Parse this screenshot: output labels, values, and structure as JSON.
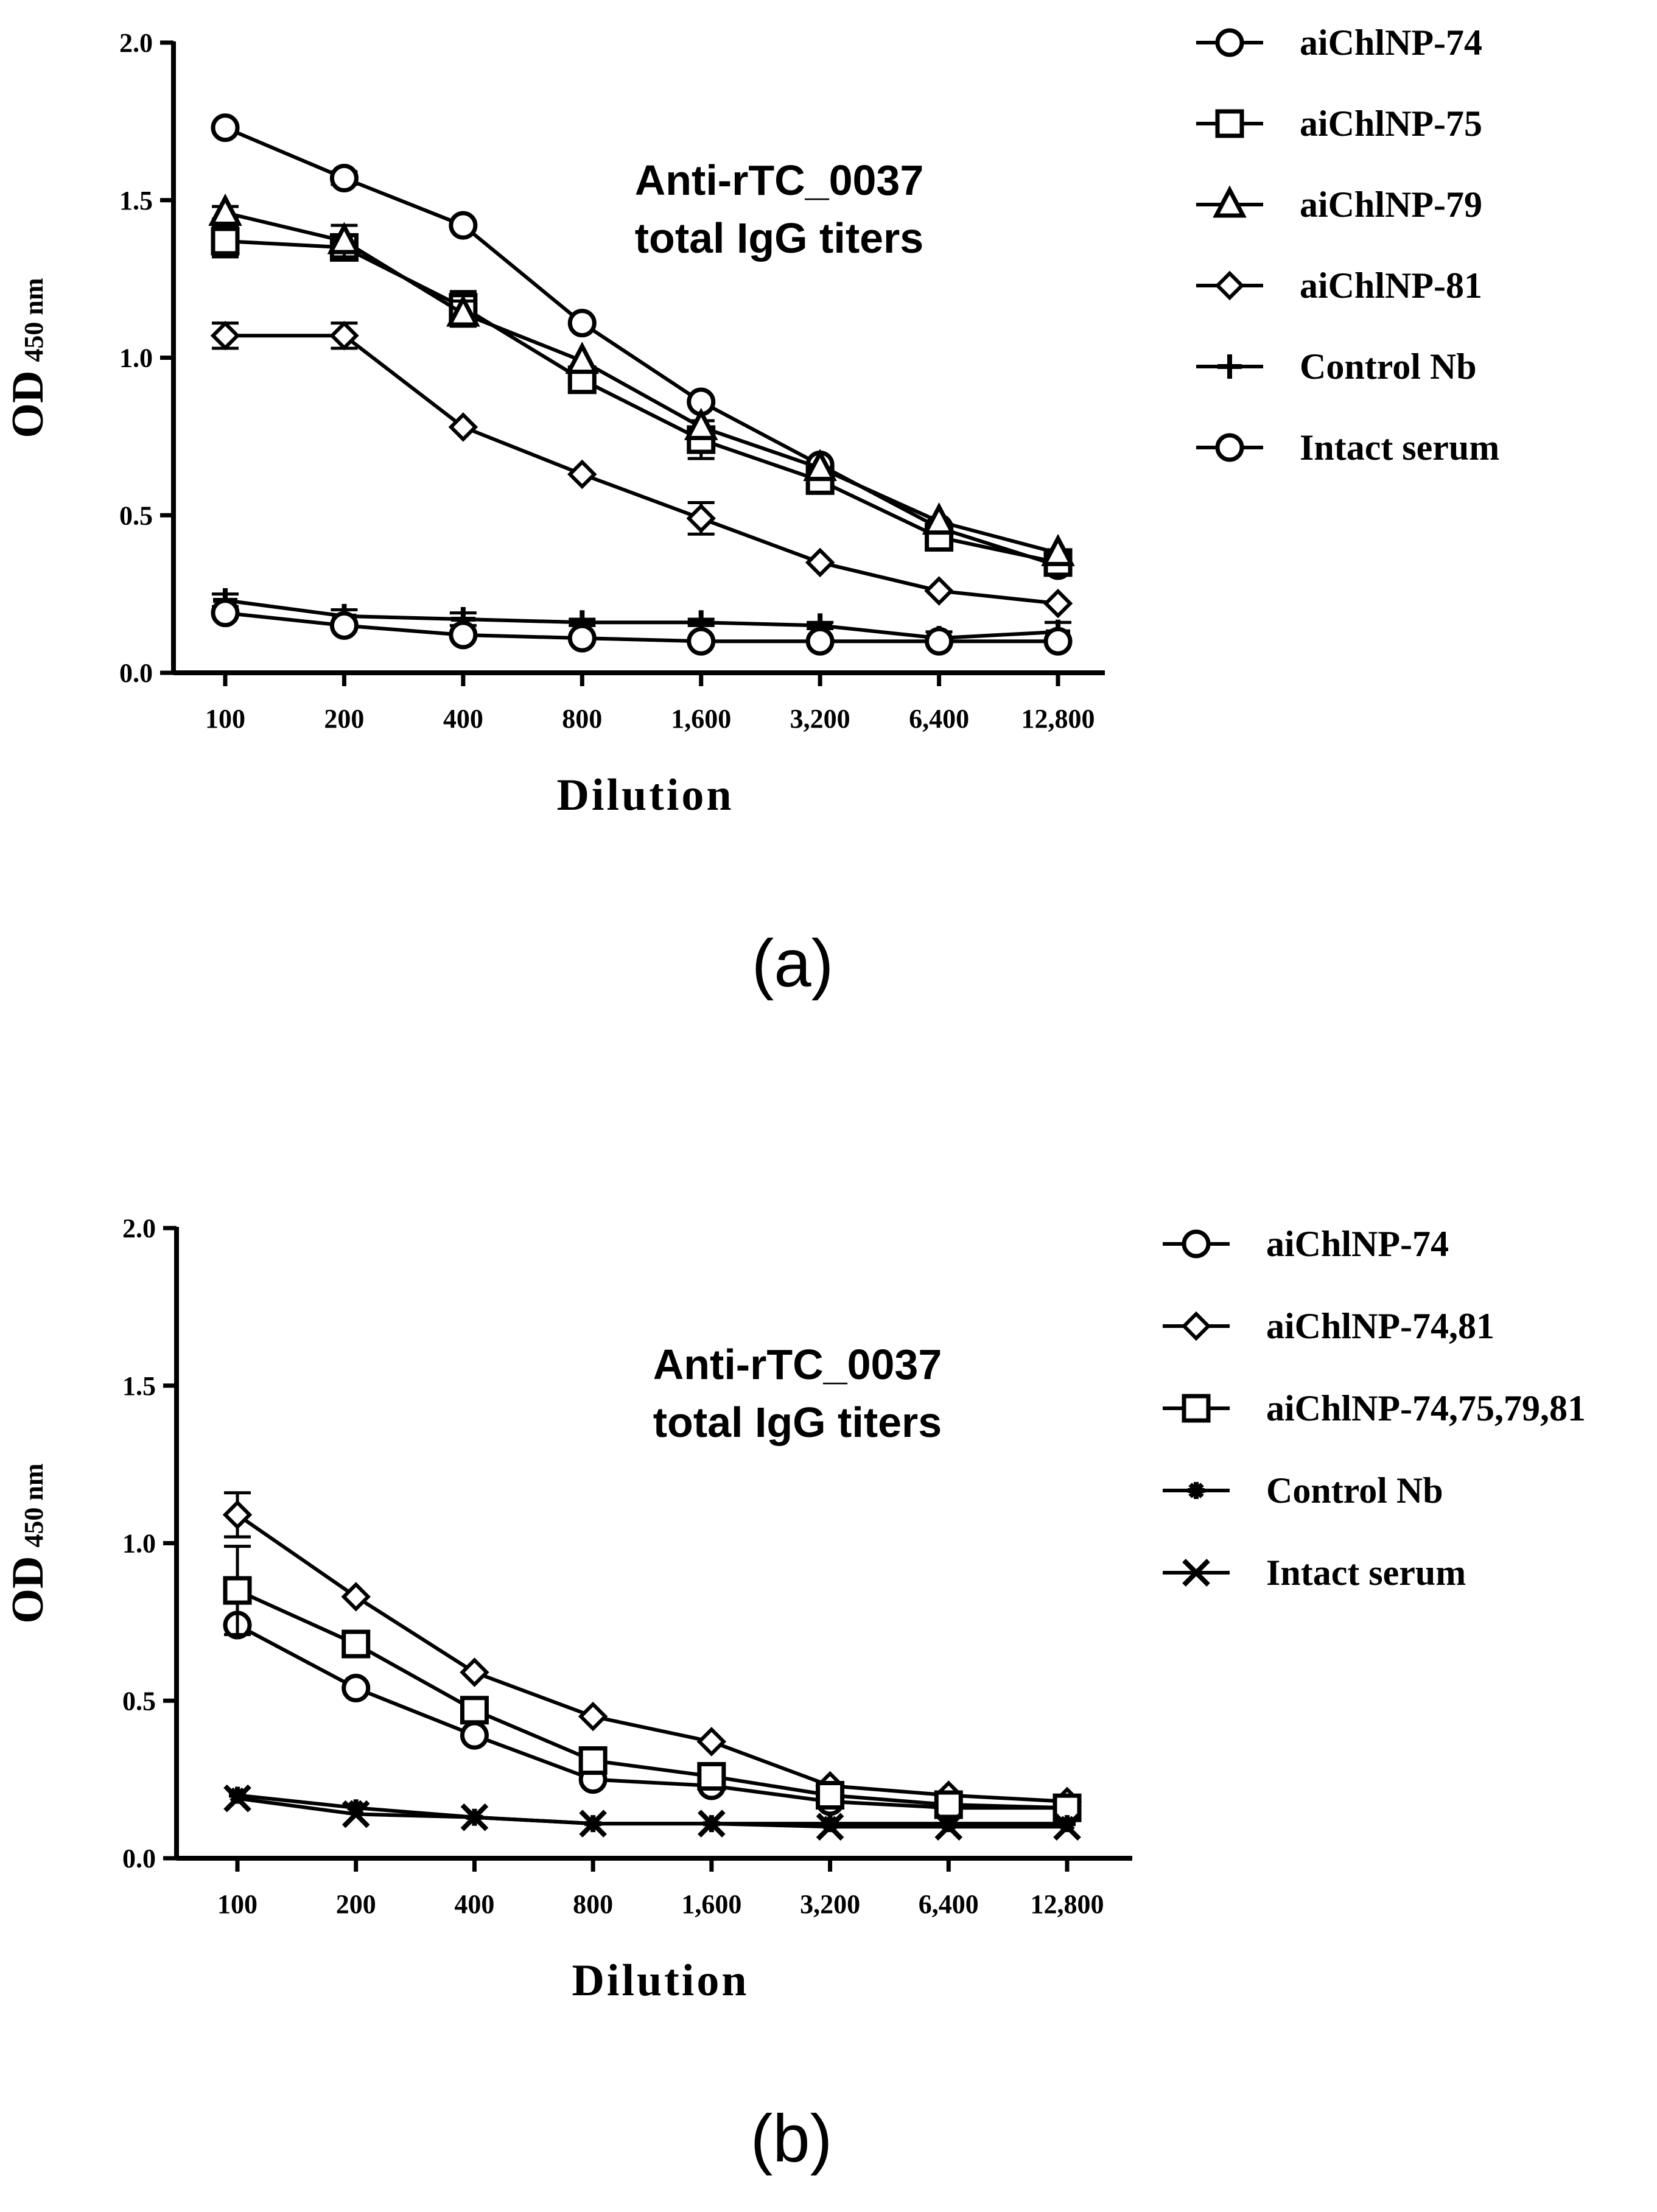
{
  "chart_data": [
    {
      "type": "line",
      "panel_label": "(a)",
      "annotation": [
        "Anti-rTC_0037",
        "total IgG titers"
      ],
      "xlabel": "Dilution",
      "ylabel_main": "OD",
      "ylabel_sub": "450 nm",
      "categories": [
        "100",
        "200",
        "400",
        "800",
        "1,600",
        "3,200",
        "6,400",
        "12,800"
      ],
      "ylim": [
        0,
        2.0
      ],
      "yticks": [
        "0.0",
        "0.5",
        "1.0",
        "1.5",
        "2.0"
      ],
      "series": [
        {
          "name": "aiChlNP-74",
          "marker": "circle",
          "values": [
            1.73,
            1.57,
            1.42,
            1.11,
            0.86,
            0.66,
            0.46,
            0.34
          ],
          "errors": [
            0,
            0.02,
            0,
            0,
            0,
            0,
            0,
            0
          ]
        },
        {
          "name": "aiChlNP-75",
          "marker": "square",
          "values": [
            1.37,
            1.35,
            1.16,
            0.93,
            0.74,
            0.61,
            0.43,
            0.35
          ],
          "errors": [
            0.05,
            0.03,
            0.05,
            0.02,
            0.06,
            0.02,
            0.02,
            0.02
          ]
        },
        {
          "name": "aiChlNP-79",
          "marker": "triangle",
          "values": [
            1.46,
            1.37,
            1.14,
            0.99,
            0.78,
            0.65,
            0.48,
            0.38
          ],
          "errors": [
            0.02,
            0.05,
            0.04,
            0,
            0.02,
            0,
            0,
            0
          ]
        },
        {
          "name": "aiChlNP-81",
          "marker": "diamond",
          "values": [
            1.07,
            1.07,
            0.78,
            0.63,
            0.49,
            0.35,
            0.26,
            0.22
          ],
          "errors": [
            0.04,
            0.04,
            0,
            0,
            0.05,
            0,
            0,
            0
          ]
        },
        {
          "name": "Control Nb",
          "marker": "plus",
          "values": [
            0.23,
            0.18,
            0.17,
            0.16,
            0.16,
            0.15,
            0.11,
            0.13
          ],
          "errors": [
            0.02,
            0.02,
            0.02,
            0.01,
            0.01,
            0.01,
            0.02,
            0.03
          ]
        },
        {
          "name": "Intact serum",
          "marker": "circle",
          "values": [
            0.19,
            0.15,
            0.12,
            0.11,
            0.1,
            0.1,
            0.1,
            0.1
          ],
          "errors": [
            0,
            0,
            0,
            0,
            0,
            0,
            0,
            0
          ]
        }
      ]
    },
    {
      "type": "line",
      "panel_label": "(b)",
      "annotation": [
        "Anti-rTC_0037",
        "total IgG titers"
      ],
      "xlabel": "Dilution",
      "ylabel_main": "OD",
      "ylabel_sub": "450 nm",
      "categories": [
        "100",
        "200",
        "400",
        "800",
        "1,600",
        "3,200",
        "6,400",
        "12,800"
      ],
      "ylim": [
        0,
        2.0
      ],
      "yticks": [
        "0.0",
        "0.5",
        "1.0",
        "1.5",
        "2.0"
      ],
      "series": [
        {
          "name": "aiChlNP-74",
          "marker": "circle",
          "values": [
            0.74,
            0.54,
            0.39,
            0.25,
            0.23,
            0.18,
            0.16,
            0.16
          ],
          "errors": [
            0,
            0,
            0,
            0,
            0,
            0,
            0,
            0
          ]
        },
        {
          "name": "aiChlNP-74,81",
          "marker": "diamond",
          "values": [
            1.09,
            0.83,
            0.59,
            0.45,
            0.37,
            0.23,
            0.2,
            0.18
          ],
          "errors": [
            0.07,
            0,
            0,
            0,
            0,
            0,
            0,
            0
          ]
        },
        {
          "name": "aiChlNP-74,75,79,81",
          "marker": "square",
          "values": [
            0.85,
            0.68,
            0.47,
            0.31,
            0.26,
            0.2,
            0.17,
            0.16
          ],
          "errors": [
            0.14,
            0,
            0,
            0,
            0,
            0,
            0,
            0
          ]
        },
        {
          "name": "Control Nb",
          "marker": "star",
          "values": [
            0.2,
            0.16,
            0.13,
            0.11,
            0.11,
            0.11,
            0.11,
            0.11
          ],
          "errors": [
            0,
            0,
            0,
            0,
            0,
            0,
            0,
            0
          ]
        },
        {
          "name": "Intact serum",
          "marker": "cross",
          "values": [
            0.19,
            0.14,
            0.13,
            0.11,
            0.11,
            0.1,
            0.1,
            0.1
          ],
          "errors": [
            0,
            0,
            0,
            0,
            0,
            0,
            0,
            0
          ]
        }
      ]
    }
  ],
  "colors": {
    "ink": "#000000",
    "background": "#ffffff"
  }
}
